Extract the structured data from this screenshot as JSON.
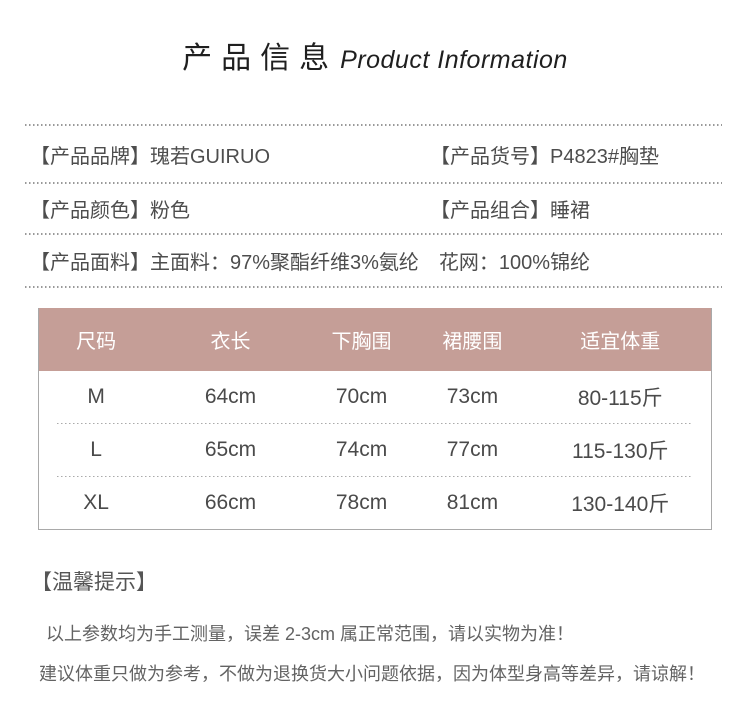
{
  "page": {
    "background": "#ffffff",
    "accent_pink": "#c59e97",
    "divider_color": "#999999",
    "table_border_color": "#a9a9a9"
  },
  "header": {
    "title_zh": "产品信息",
    "title_en": "Product Information"
  },
  "attributes": {
    "brand": {
      "label": "【产品品牌】",
      "value": "瑰若GUIRUO"
    },
    "sku": {
      "label": "【产品货号】",
      "value": "P4823#胸垫"
    },
    "color": {
      "label": "【产品颜色】",
      "value": "粉色"
    },
    "combo": {
      "label": "【产品组合】",
      "value": "睡裙"
    },
    "fabric": {
      "label": "【产品面料】",
      "value": "主面料：97%聚酯纤维3%氨纶　花网：100%锦纶"
    }
  },
  "size_table": {
    "header_bg": "#c59e97",
    "columns": [
      "尺码",
      "衣长",
      "下胸围",
      "裙腰围",
      "适宜体重"
    ],
    "rows": [
      [
        "M",
        "64cm",
        "70cm",
        "73cm",
        "80-115斤"
      ],
      [
        "L",
        "65cm",
        "74cm",
        "77cm",
        "115-130斤"
      ],
      [
        "XL",
        "66cm",
        "78cm",
        "81cm",
        "130-140斤"
      ]
    ]
  },
  "tips": {
    "title": "【温馨提示】",
    "lines": [
      "以上参数均为手工测量，误差 2-3cm 属正常范围，请以实物为准！",
      "建议体重只做为参考，不做为退换货大小问题依据，因为体型身高等差异，请谅解！"
    ]
  }
}
